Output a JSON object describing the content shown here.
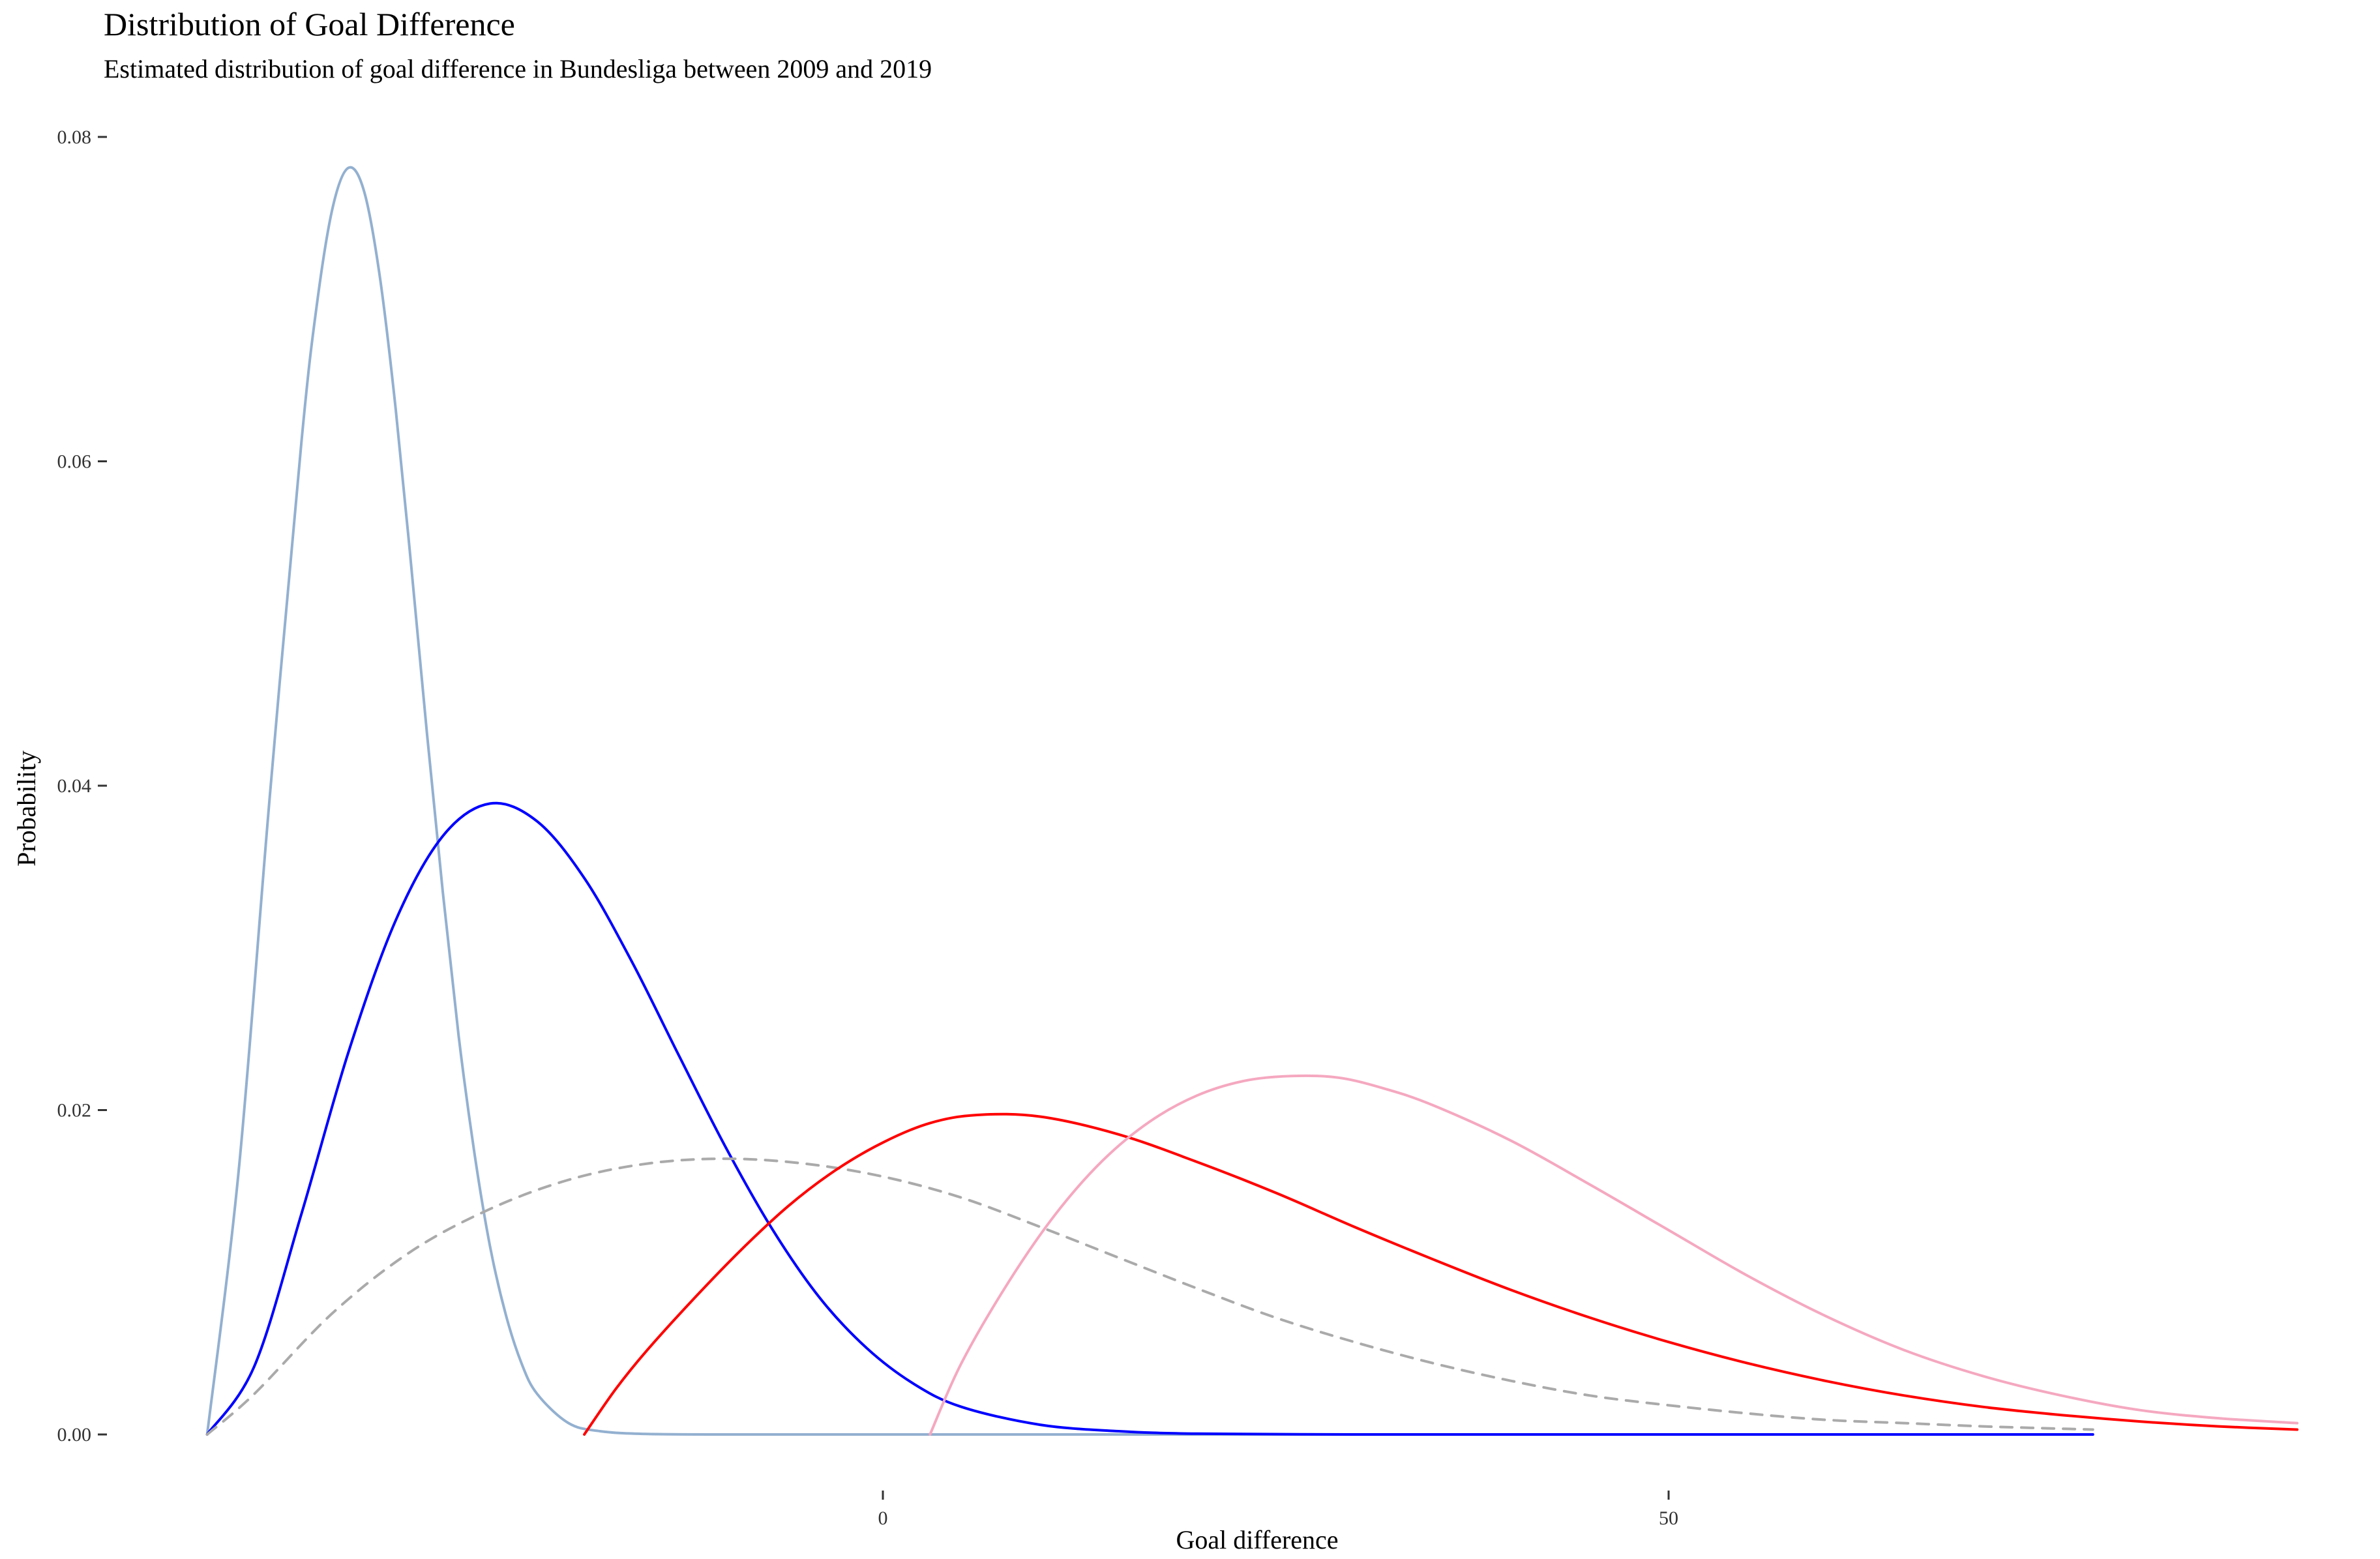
{
  "chart_data": {
    "type": "line",
    "title": "Distribution of Goal Difference",
    "subtitle": "Estimated distribution of goal difference in Bundesliga between 2009 and 2019",
    "xlabel": "Goal difference",
    "ylabel": "Probability",
    "xlim": [
      -45,
      91
    ],
    "ylim": [
      0,
      0.08
    ],
    "x_ticks": [
      0,
      50
    ],
    "y_ticks": [
      0.0,
      0.02,
      0.04,
      0.06,
      0.08
    ],
    "y_tick_labels": [
      "0.00",
      "0.02",
      "0.04",
      "0.06",
      "0.08"
    ],
    "grid": false,
    "legend": "none",
    "series": [
      {
        "color": "#93b0d0",
        "dash": "solid",
        "x": [
          -43,
          -41,
          -39,
          -37,
          -36,
          -35,
          -34,
          -33,
          -32,
          -31,
          -30,
          -29,
          -28,
          -27,
          -26,
          -25,
          -24,
          -23,
          -22,
          -20,
          -18,
          -15,
          -10,
          -5,
          0,
          20,
          40,
          60,
          77
        ],
        "y": [
          0.0,
          0.0162,
          0.0395,
          0.0612,
          0.0698,
          0.0757,
          0.0781,
          0.0766,
          0.0713,
          0.0632,
          0.0534,
          0.0431,
          0.0334,
          0.0246,
          0.0174,
          0.0116,
          0.0074,
          0.0044,
          0.0025,
          0.0007,
          0.0002,
          3e-05,
          0.0,
          0.0,
          0.0,
          0.0,
          0.0,
          0.0,
          0.0
        ]
      },
      {
        "color": "#0000ff",
        "dash": "solid",
        "x": [
          -43,
          -40,
          -37,
          -34,
          -31,
          -28,
          -25,
          -22,
          -19,
          -16,
          -13,
          -10,
          -7,
          -4,
          -1,
          2,
          5,
          10,
          15,
          20,
          30,
          40,
          60,
          77
        ],
        "y": [
          0.0,
          0.0042,
          0.0136,
          0.0236,
          0.0317,
          0.0369,
          0.0389,
          0.0378,
          0.0343,
          0.0292,
          0.0234,
          0.0177,
          0.0126,
          0.0084,
          0.0053,
          0.0031,
          0.0017,
          0.0006,
          0.0002,
          5e-05,
          0.0,
          0.0,
          0.0,
          0.0
        ]
      },
      {
        "color": "#aaaaaa",
        "dash": "dashed",
        "x": [
          -43,
          -40,
          -35,
          -30,
          -25,
          -20,
          -15,
          -10,
          -5,
          0,
          5,
          10,
          15,
          20,
          25,
          30,
          35,
          40,
          45,
          50,
          55,
          60,
          65,
          70,
          77
        ],
        "y": [
          0.0,
          0.0025,
          0.0075,
          0.0113,
          0.0139,
          0.0157,
          0.0167,
          0.017,
          0.0167,
          0.0159,
          0.0146,
          0.0128,
          0.0109,
          0.009,
          0.0072,
          0.0057,
          0.0044,
          0.0033,
          0.0024,
          0.0018,
          0.0013,
          0.0009,
          0.0007,
          0.0005,
          0.0003
        ]
      },
      {
        "color": "#ff0000",
        "dash": "solid",
        "x": [
          -19,
          -17,
          -15,
          -12,
          -9,
          -6,
          -3,
          0,
          3,
          6,
          10,
          15,
          20,
          25,
          30,
          35,
          40,
          45,
          50,
          55,
          60,
          65,
          70,
          75,
          80,
          85,
          90
        ],
        "y": [
          0.0,
          0.0028,
          0.0052,
          0.0084,
          0.0114,
          0.0141,
          0.0163,
          0.018,
          0.0192,
          0.0197,
          0.0196,
          0.0185,
          0.0168,
          0.0149,
          0.0128,
          0.0108,
          0.0089,
          0.0072,
          0.0057,
          0.0044,
          0.0033,
          0.0024,
          0.0017,
          0.0012,
          0.0008,
          0.0005,
          0.0003
        ]
      },
      {
        "color": "#f5a8c0",
        "dash": "solid",
        "x": [
          3,
          5,
          8,
          11,
          14,
          17,
          20,
          23,
          26,
          29,
          32,
          35,
          40,
          45,
          50,
          55,
          60,
          65,
          70,
          75,
          80,
          85,
          90
        ],
        "y": [
          0.0,
          0.0044,
          0.0094,
          0.0136,
          0.0169,
          0.0193,
          0.0209,
          0.0218,
          0.0221,
          0.022,
          0.0213,
          0.0203,
          0.0181,
          0.0154,
          0.0126,
          0.0098,
          0.0073,
          0.0052,
          0.0036,
          0.0024,
          0.0015,
          0.001,
          0.0007
        ]
      }
    ]
  }
}
